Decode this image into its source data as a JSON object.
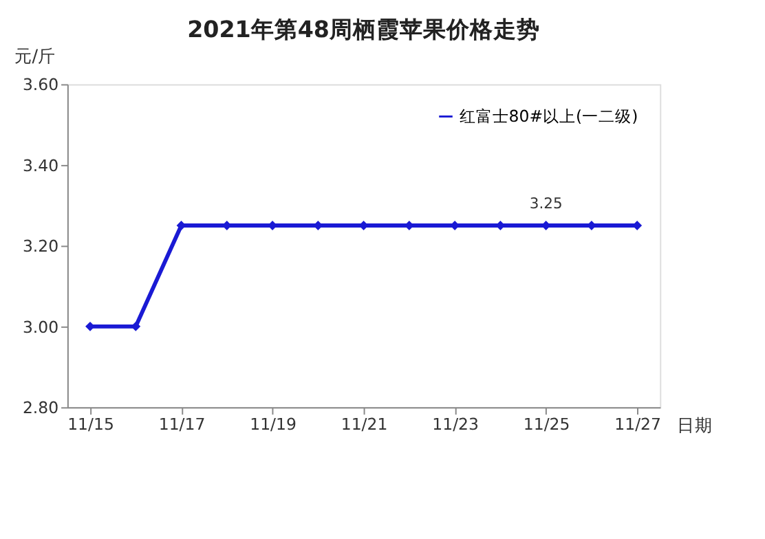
{
  "chart_data": {
    "type": "line",
    "title": "2021年第48周栖霞苹果价格走势",
    "xlabel": "日期",
    "ylabel": "元/斤",
    "categories": [
      "11/15",
      null,
      "11/17",
      null,
      "11/19",
      null,
      "11/21",
      null,
      "11/23",
      null,
      "11/25",
      null,
      "11/27"
    ],
    "series": [
      {
        "name": "红富士80#以上(一二级)",
        "color": "#1a1ad4",
        "values": [
          3.0,
          3.0,
          3.25,
          3.25,
          3.25,
          3.25,
          3.25,
          3.25,
          3.25,
          3.25,
          3.25,
          3.25,
          3.25
        ],
        "value_labels": [
          null,
          null,
          null,
          null,
          null,
          null,
          null,
          null,
          null,
          null,
          "3.25",
          null,
          null
        ]
      }
    ],
    "ylim": [
      2.8,
      3.6
    ],
    "yticks": [
      {
        "value": 2.8,
        "label": "2.80"
      },
      {
        "value": 3.0,
        "label": "3.00"
      },
      {
        "value": 3.2,
        "label": "3.20"
      },
      {
        "value": 3.4,
        "label": "3.40"
      },
      {
        "value": 3.6,
        "label": "3.60"
      }
    ],
    "legend": "top right",
    "marker": "diamond",
    "line_style": "solid",
    "grid": false
  }
}
